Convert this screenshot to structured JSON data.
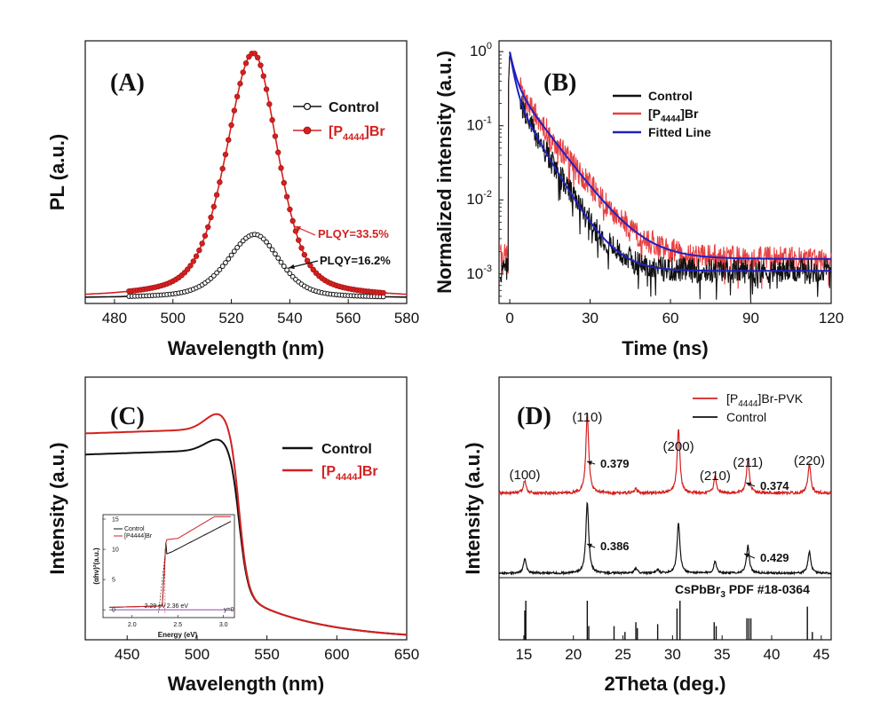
{
  "chart_data": [
    {
      "id": "A",
      "type": "line",
      "panel_label": "(A)",
      "xlabel": "Wavelength (nm)",
      "ylabel": "PL (a.u.)",
      "xlim": [
        470,
        580
      ],
      "xticks": [
        480,
        500,
        520,
        540,
        560,
        580
      ],
      "ylim": [
        0,
        1.05
      ],
      "yticks_shown": false,
      "legend_position": "top-right",
      "series": [
        {
          "name": "Control",
          "name_sub": "",
          "name_suffix": "",
          "color": "#111111",
          "marker": "open-circle",
          "peak_x": 528,
          "peak_y": 0.26,
          "width_left": 11,
          "width_right": 10
        },
        {
          "name": "[P",
          "name_sub": "4444",
          "name_suffix": "]Br",
          "color": "#d42020",
          "marker": "filled-circle",
          "peak_x": 527.5,
          "peak_y": 1.0,
          "width_left": 11,
          "width_right": 10
        }
      ],
      "annotations": [
        {
          "text": "PLQY=33.5%",
          "color": "#d42020",
          "x": 552,
          "y": 0.3
        },
        {
          "text": "PLQY=16.2%",
          "color": "#111111",
          "x": 552,
          "y": 0.17
        }
      ]
    },
    {
      "id": "B",
      "type": "line",
      "panel_label": "(B)",
      "xlabel": "Time (ns)",
      "ylabel": "Normalized intensity (a.u.)",
      "xlim": [
        -4,
        120
      ],
      "xticks": [
        0,
        30,
        60,
        90,
        120
      ],
      "yscale": "log",
      "ylim": [
        0.0004,
        1.4
      ],
      "yticks": [
        {
          "base": "10",
          "exp": "0",
          "value": 1
        },
        {
          "base": "10",
          "exp": "-1",
          "value": 0.1
        },
        {
          "base": "10",
          "exp": "-2",
          "value": 0.01
        },
        {
          "base": "10",
          "exp": "-3",
          "value": 0.001
        }
      ],
      "legend_position": "top-right",
      "series": [
        {
          "name": "Control",
          "name_sub": "",
          "name_suffix": "",
          "color": "#111111",
          "background": 0.0011,
          "decay": [
            [
              0.7,
              1.6
            ],
            [
              0.29,
              7.0
            ]
          ]
        },
        {
          "name": "[P",
          "name_sub": "4444",
          "name_suffix": "]Br",
          "color": "#e84040",
          "background": 0.0016,
          "decay": [
            [
              0.6,
              1.8
            ],
            [
              0.39,
              9.0
            ]
          ]
        },
        {
          "name": "Fitted Line",
          "name_sub": "",
          "name_suffix": "",
          "color": "#2020c0"
        }
      ]
    },
    {
      "id": "C",
      "type": "line",
      "panel_label": "(C)",
      "xlabel": "Wavelength (nm)",
      "ylabel": "Intensity (a.u.)",
      "xlim": [
        420,
        650
      ],
      "xticks": [
        450,
        500,
        550,
        600,
        650
      ],
      "ylim": [
        0,
        1.12
      ],
      "yticks_shown": false,
      "legend_position": "top-right",
      "series": [
        {
          "name": "Control",
          "name_sub": "",
          "name_suffix": "",
          "color": "#111111",
          "plateau": 0.79,
          "peak": 0.84
        },
        {
          "name": "[P",
          "name_sub": "4444",
          "name_suffix": "]Br",
          "color": "#d42020",
          "plateau": 0.88,
          "peak": 0.95
        }
      ],
      "inset": {
        "xlabel": "Energy (eV)",
        "ylabel": "(αhν)²(a.u.)",
        "xlim": [
          1.75,
          3.1
        ],
        "xticks": [
          2.0,
          2.5,
          3.0
        ],
        "ylim": [
          -1,
          15
        ],
        "yticks": [
          0,
          5,
          10,
          15
        ],
        "legend": [
          "Control",
          "[P4444]Br"
        ],
        "band_gap_labels": [
          "2.29 eV",
          "2.36 eV"
        ],
        "baseline_label": "y=0"
      }
    },
    {
      "id": "D",
      "type": "line",
      "panel_label": "(D)",
      "xlabel": "2Theta (deg.)",
      "ylabel": "Intensity (a.u.)",
      "xlim": [
        12.5,
        46
      ],
      "xticks": [
        15,
        20,
        25,
        30,
        35,
        40,
        45
      ],
      "yticks_shown": false,
      "legend_position": "top-right",
      "series": [
        {
          "name": "[P",
          "name_sub": "4444",
          "name_suffix": "]Br-PVK",
          "color": "#d42020",
          "peaks": [
            [
              15.1,
              0.12
            ],
            [
              21.4,
              0.75
            ],
            [
              26.3,
              0.04
            ],
            [
              30.6,
              0.6
            ],
            [
              34.3,
              0.15
            ],
            [
              37.6,
              0.32
            ],
            [
              43.8,
              0.28
            ]
          ]
        },
        {
          "name": "Control",
          "name_sub": "",
          "name_suffix": "",
          "color": "#111111",
          "peaks": [
            [
              15.1,
              0.18
            ],
            [
              21.4,
              0.9
            ],
            [
              26.3,
              0.06
            ],
            [
              28.5,
              0.04
            ],
            [
              30.6,
              0.65
            ],
            [
              34.3,
              0.15
            ],
            [
              37.6,
              0.35
            ],
            [
              43.8,
              0.28
            ]
          ]
        }
      ],
      "miller_indices": [
        {
          "label": "(100)",
          "x": 15.1
        },
        {
          "label": "(110)",
          "x": 21.4
        },
        {
          "label": "(200)",
          "x": 30.6
        },
        {
          "label": "(210)",
          "x": 34.3
        },
        {
          "label": "(211)",
          "x": 37.6
        },
        {
          "label": "(220)",
          "x": 43.8
        }
      ],
      "fwhm_annotations": [
        {
          "text": "0.379",
          "series": 0,
          "x": 22.3
        },
        {
          "text": "0.374",
          "series": 0,
          "x": 39.3
        },
        {
          "text": "0.386",
          "series": 1,
          "x": 22.3
        },
        {
          "text": "0.429",
          "series": 1,
          "x": 39.9
        }
      ],
      "reference": {
        "label_main": "CsPbBr",
        "label_sub": "3",
        "label_suffix": " PDF #18-0364",
        "lines": [
          [
            15.1,
            0.75
          ],
          [
            15.2,
            1.0
          ],
          [
            21.4,
            1.0
          ],
          [
            21.55,
            0.35
          ],
          [
            24.1,
            0.35
          ],
          [
            25.2,
            0.2
          ],
          [
            26.3,
            0.45
          ],
          [
            26.45,
            0.3
          ],
          [
            28.5,
            0.4
          ],
          [
            30.45,
            0.8
          ],
          [
            30.75,
            1.0
          ],
          [
            34.2,
            0.45
          ],
          [
            34.4,
            0.35
          ],
          [
            37.5,
            0.55
          ],
          [
            37.7,
            0.55
          ],
          [
            37.9,
            0.55
          ],
          [
            43.6,
            0.85
          ],
          [
            44.1,
            0.2
          ]
        ]
      }
    }
  ]
}
